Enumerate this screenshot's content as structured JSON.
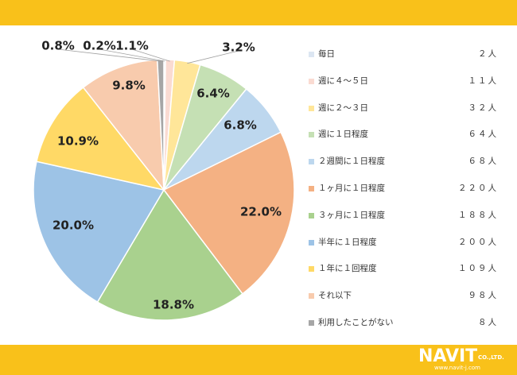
{
  "colors": {
    "bar": "#F9C11A",
    "label": "#222222",
    "leader": "#a0a0a0"
  },
  "brand": {
    "logo_text": "NAVIT",
    "logo_suffix": "CO.,LTD.",
    "url": "www.navit-j.com"
  },
  "chart_data": {
    "type": "pie",
    "categories": [
      "毎日",
      "週に４～５日",
      "週に２～３日",
      "週に１日程度",
      "２週間に１日程度",
      "１ヶ月に１日程度",
      "３ヶ月に１日程度",
      "半年に１日程度",
      "１年に１回程度",
      "それ以下",
      "利用したことがない"
    ],
    "values": [
      2,
      11,
      32,
      64,
      68,
      220,
      188,
      200,
      109,
      98,
      8
    ],
    "counts": [
      "２人",
      "１１人",
      "３２人",
      "６４人",
      "６８人",
      "２２０人",
      "１８８人",
      "２００人",
      "１０９人",
      "９８人",
      "８人"
    ],
    "percent_labels": [
      "0.2%",
      "1.1%",
      "3.2%",
      "6.4%",
      "6.8%",
      "22.0%",
      "18.8%",
      "20.0%",
      "10.9%",
      "9.8%",
      "0.8%"
    ],
    "colors": [
      "#DCE6F2",
      "#FADBD2",
      "#FFE699",
      "#C5E0B4",
      "#BDD7EE",
      "#F4B183",
      "#A9D18E",
      "#9DC3E6",
      "#FFD966",
      "#F8CBAD",
      "#A6A6A6"
    ],
    "legend_position": "right"
  }
}
